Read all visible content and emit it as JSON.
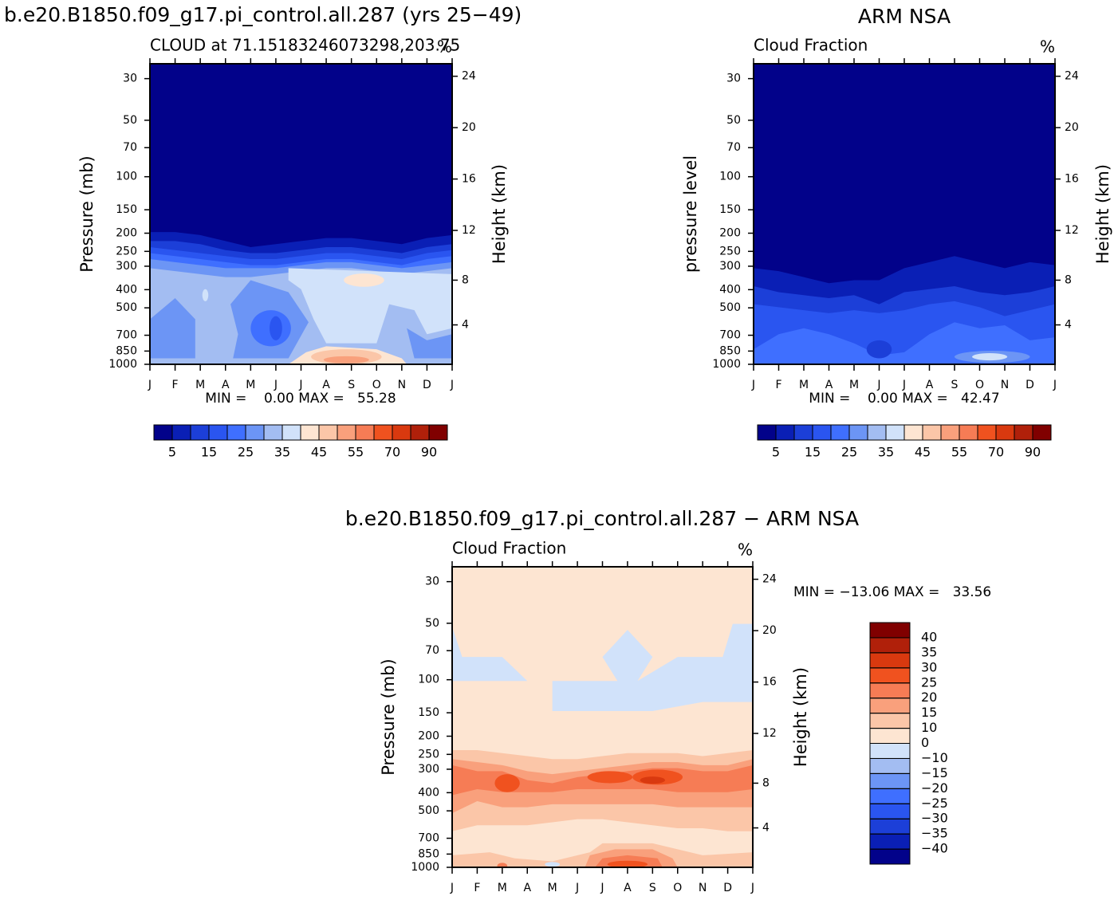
{
  "chart_data": [
    {
      "type": "contour",
      "title": "b.e20.B1850.f09_g17.pi_control.all.287 (yrs 25−49)",
      "subtitle_left": "CLOUD at 71.15183246073298,203.75",
      "subtitle_right": "%",
      "ylabel": "Pressure (mb)",
      "y2label": "Height (km)",
      "stats": "MIN =    0.00 MAX =   55.28",
      "categories": [
        "J",
        "F",
        "M",
        "A",
        "M",
        "J",
        "J",
        "A",
        "S",
        "O",
        "N",
        "D",
        "J"
      ],
      "ylim": [
        1000,
        25
      ],
      "yticks": [
        30,
        50,
        70,
        100,
        150,
        200,
        250,
        300,
        400,
        500,
        700,
        850,
        1000
      ],
      "log_y": true,
      "y2ticks": [
        4,
        8,
        12,
        16,
        20,
        24
      ],
      "colorbar": {
        "orientation": "horizontal",
        "levels": [
          5,
          10,
          15,
          20,
          25,
          30,
          35,
          40,
          45,
          50,
          55,
          60,
          70,
          80,
          90
        ],
        "ticks": [
          5,
          15,
          25,
          35,
          45,
          55,
          70,
          90
        ],
        "colors": [
          "#02028a",
          "#0a1fb5",
          "#1c3fd8",
          "#2a55f0",
          "#3f6fff",
          "#6c95f5",
          "#a3bdf2",
          "#d1e2fa",
          "#fde5d2",
          "#fbc6a8",
          "#f9a07c",
          "#f67c55",
          "#f0521f",
          "#d9390f",
          "#b0200a",
          "#800000"
        ]
      }
    },
    {
      "type": "contour",
      "title": "ARM NSA",
      "subtitle_left": "Cloud Fraction",
      "subtitle_right": "%",
      "ylabel": "pressure level",
      "y2label": "Height (km)",
      "stats": "MIN =    0.00 MAX =   42.47",
      "categories": [
        "J",
        "F",
        "M",
        "A",
        "M",
        "J",
        "J",
        "A",
        "S",
        "O",
        "N",
        "D",
        "J"
      ],
      "ylim": [
        1000,
        25
      ],
      "yticks": [
        30,
        50,
        70,
        100,
        150,
        200,
        250,
        300,
        400,
        500,
        700,
        850,
        1000
      ],
      "log_y": true,
      "y2ticks": [
        4,
        8,
        12,
        16,
        20,
        24
      ],
      "colorbar": {
        "orientation": "horizontal",
        "levels": [
          5,
          10,
          15,
          20,
          25,
          30,
          35,
          40,
          45,
          50,
          55,
          60,
          70,
          80,
          90
        ],
        "ticks": [
          5,
          15,
          25,
          35,
          45,
          55,
          70,
          90
        ],
        "colors": [
          "#02028a",
          "#0a1fb5",
          "#1c3fd8",
          "#2a55f0",
          "#3f6fff",
          "#6c95f5",
          "#a3bdf2",
          "#d1e2fa",
          "#fde5d2",
          "#fbc6a8",
          "#f9a07c",
          "#f67c55",
          "#f0521f",
          "#d9390f",
          "#b0200a",
          "#800000"
        ]
      }
    },
    {
      "type": "contour",
      "title": "b.e20.B1850.f09_g17.pi_control.all.287 − ARM NSA",
      "subtitle_left": "Cloud Fraction",
      "subtitle_right": "%",
      "ylabel": "Pressure (mb)",
      "y2label": "Height (km)",
      "stats": "MIN = −13.06 MAX =   33.56",
      "categories": [
        "J",
        "F",
        "M",
        "A",
        "M",
        "J",
        "J",
        "A",
        "S",
        "O",
        "N",
        "D",
        "J"
      ],
      "ylim": [
        1000,
        25
      ],
      "yticks": [
        30,
        50,
        70,
        100,
        150,
        200,
        250,
        300,
        400,
        500,
        700,
        850,
        1000
      ],
      "log_y": true,
      "y2ticks": [
        4,
        8,
        12,
        16,
        20,
        24
      ],
      "colorbar": {
        "orientation": "vertical",
        "levels": [
          -40,
          -35,
          -30,
          -25,
          -20,
          -15,
          -10,
          0,
          10,
          15,
          20,
          25,
          30,
          35,
          40
        ],
        "ticks": [
          {
            "value": -40,
            "label": "−40"
          },
          {
            "value": -35,
            "label": "−35"
          },
          {
            "value": -30,
            "label": "−30"
          },
          {
            "value": -25,
            "label": "−25"
          },
          {
            "value": -20,
            "label": "−20"
          },
          {
            "value": -15,
            "label": "−15"
          },
          {
            "value": -10,
            "label": "−10"
          },
          0,
          10,
          15,
          20,
          25,
          30,
          35,
          40
        ],
        "colors": [
          "#02028a",
          "#0a1fb5",
          "#1c3fd8",
          "#2a55f0",
          "#3f6fff",
          "#6c95f5",
          "#a3bdf2",
          "#d1e2fa",
          "#fde5d2",
          "#fbc6a8",
          "#f9a07c",
          "#f67c55",
          "#f0521f",
          "#d9390f",
          "#b0200a",
          "#800000"
        ]
      }
    }
  ]
}
